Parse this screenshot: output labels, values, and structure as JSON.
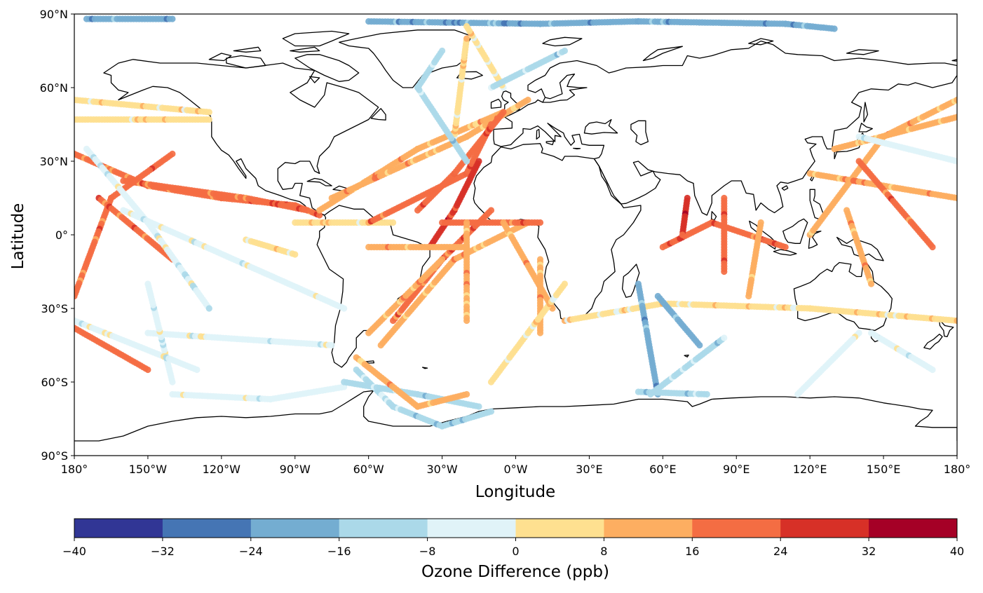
{
  "chart_data": {
    "type": "scatter",
    "subtype": "map-ship-track-scatter",
    "projection": "PlateCarree",
    "xlabel": "Longitude",
    "ylabel": "Latitude",
    "xlim": [
      -180,
      180
    ],
    "ylim": [
      -90,
      90
    ],
    "x_ticks": [
      -180,
      -150,
      -120,
      -90,
      -60,
      -30,
      0,
      30,
      60,
      90,
      120,
      150,
      180
    ],
    "x_tick_labels": [
      "180°",
      "150°W",
      "120°W",
      "90°W",
      "60°W",
      "30°W",
      "0°W",
      "30°E",
      "60°E",
      "90°E",
      "120°E",
      "150°E",
      "180°"
    ],
    "y_ticks": [
      90,
      60,
      30,
      0,
      -30,
      -60,
      -90
    ],
    "y_tick_labels": [
      "90°N",
      "60°N",
      "30°N",
      "0°",
      "30°S",
      "60°S",
      "90°S"
    ],
    "colorbar": {
      "label": "Ozone Difference (ppb)",
      "ticks": [
        -40,
        -32,
        -24,
        -16,
        -8,
        0,
        8,
        16,
        24,
        32,
        40
      ],
      "tick_labels": [
        "−40",
        "−32",
        "−24",
        "−16",
        "−8",
        "0",
        "8",
        "16",
        "24",
        "32",
        "40"
      ],
      "colors": [
        "#313695",
        "#4575b4",
        "#74add1",
        "#abd9e9",
        "#e0f3f8",
        "#fee090",
        "#fdae61",
        "#f46d43",
        "#d73027",
        "#a50026"
      ]
    },
    "tracks": [
      {
        "value": 4,
        "points": [
          [
            -180,
            47
          ],
          [
            -125,
            47
          ]
        ]
      },
      {
        "value": 4,
        "points": [
          [
            -180,
            55
          ],
          [
            -125,
            50
          ]
        ]
      },
      {
        "value": 20,
        "points": [
          [
            -180,
            33
          ],
          [
            -150,
            20
          ],
          [
            -120,
            15
          ],
          [
            -90,
            12
          ],
          [
            -80,
            8
          ]
        ]
      },
      {
        "value": 20,
        "points": [
          [
            -160,
            22
          ],
          [
            -110,
            15
          ],
          [
            -85,
            10
          ]
        ]
      },
      {
        "value": 20,
        "points": [
          [
            -140,
            33
          ],
          [
            -165,
            15
          ],
          [
            -180,
            -25
          ]
        ]
      },
      {
        "value": 20,
        "points": [
          [
            -170,
            15
          ],
          [
            -140,
            -10
          ]
        ]
      },
      {
        "value": 20,
        "points": [
          [
            -180,
            -38
          ],
          [
            -150,
            -55
          ]
        ]
      },
      {
        "value": -4,
        "points": [
          [
            -175,
            35
          ],
          [
            -150,
            5
          ],
          [
            -125,
            -30
          ]
        ]
      },
      {
        "value": -4,
        "points": [
          [
            -160,
            10
          ],
          [
            -70,
            -30
          ]
        ]
      },
      {
        "value": -4,
        "points": [
          [
            -150,
            -40
          ],
          [
            -75,
            -45
          ]
        ]
      },
      {
        "value": -4,
        "points": [
          [
            -140,
            -65
          ],
          [
            -100,
            -67
          ],
          [
            -70,
            -62
          ]
        ]
      },
      {
        "value": -4,
        "points": [
          [
            -140,
            -60
          ],
          [
            -150,
            -20
          ]
        ]
      },
      {
        "value": -4,
        "points": [
          [
            -180,
            -35
          ],
          [
            -130,
            -55
          ]
        ]
      },
      {
        "value": -20,
        "points": [
          [
            -175,
            88
          ],
          [
            -140,
            88
          ]
        ]
      },
      {
        "value": -20,
        "points": [
          [
            -60,
            87
          ],
          [
            10,
            86
          ],
          [
            50,
            87
          ],
          [
            110,
            86
          ],
          [
            130,
            84
          ]
        ]
      },
      {
        "value": 4,
        "points": [
          [
            -90,
            5
          ],
          [
            -50,
            5
          ]
        ]
      },
      {
        "value": 4,
        "points": [
          [
            -110,
            -2
          ],
          [
            -90,
            -8
          ]
        ]
      },
      {
        "value": 12,
        "points": [
          [
            -80,
            10
          ],
          [
            -40,
            35
          ],
          [
            -5,
            50
          ]
        ]
      },
      {
        "value": 12,
        "points": [
          [
            -75,
            15
          ],
          [
            -20,
            40
          ],
          [
            5,
            55
          ]
        ]
      },
      {
        "value": 20,
        "points": [
          [
            -60,
            5
          ],
          [
            -20,
            25
          ],
          [
            -10,
            45
          ]
        ]
      },
      {
        "value": 20,
        "points": [
          [
            -40,
            10
          ],
          [
            -25,
            25
          ],
          [
            -5,
            50
          ]
        ]
      },
      {
        "value": 28,
        "points": [
          [
            -35,
            -5
          ],
          [
            -25,
            10
          ],
          [
            -15,
            30
          ]
        ]
      },
      {
        "value": 20,
        "points": [
          [
            -50,
            -35
          ],
          [
            -30,
            -10
          ],
          [
            -10,
            10
          ]
        ]
      },
      {
        "value": 12,
        "points": [
          [
            -55,
            -45
          ],
          [
            -25,
            -10
          ],
          [
            5,
            5
          ]
        ]
      },
      {
        "value": 12,
        "points": [
          [
            -60,
            -40
          ],
          [
            -40,
            -20
          ],
          [
            -30,
            -10
          ]
        ]
      },
      {
        "value": 20,
        "points": [
          [
            -30,
            5
          ],
          [
            10,
            5
          ]
        ]
      },
      {
        "value": 12,
        "points": [
          [
            -60,
            -5
          ],
          [
            -20,
            -5
          ]
        ]
      },
      {
        "value": 12,
        "points": [
          [
            -20,
            5
          ],
          [
            -20,
            -35
          ]
        ]
      },
      {
        "value": 12,
        "points": [
          [
            -5,
            5
          ],
          [
            15,
            -30
          ]
        ]
      },
      {
        "value": 12,
        "points": [
          [
            10,
            -10
          ],
          [
            10,
            -40
          ]
        ]
      },
      {
        "value": 4,
        "points": [
          [
            -10,
            -60
          ],
          [
            20,
            -20
          ]
        ]
      },
      {
        "value": 4,
        "points": [
          [
            -25,
            40
          ],
          [
            -20,
            80
          ]
        ]
      },
      {
        "value": 4,
        "points": [
          [
            -5,
            60
          ],
          [
            -20,
            85
          ]
        ]
      },
      {
        "value": -12,
        "points": [
          [
            -20,
            30
          ],
          [
            -40,
            60
          ],
          [
            -30,
            75
          ]
        ]
      },
      {
        "value": -12,
        "points": [
          [
            -10,
            60
          ],
          [
            20,
            75
          ]
        ]
      },
      {
        "value": 4,
        "points": [
          [
            20,
            -35
          ],
          [
            60,
            -28
          ],
          [
            120,
            -30
          ],
          [
            180,
            -35
          ]
        ]
      },
      {
        "value": -20,
        "points": [
          [
            50,
            -20
          ],
          [
            58,
            -65
          ]
        ]
      },
      {
        "value": -20,
        "points": [
          [
            58,
            -25
          ],
          [
            75,
            -45
          ]
        ]
      },
      {
        "value": -12,
        "points": [
          [
            55,
            -65
          ],
          [
            85,
            -42
          ]
        ]
      },
      {
        "value": -12,
        "points": [
          [
            50,
            -64
          ],
          [
            78,
            -65
          ]
        ]
      },
      {
        "value": 20,
        "points": [
          [
            60,
            -5
          ],
          [
            80,
            5
          ],
          [
            110,
            -5
          ]
        ]
      },
      {
        "value": 28,
        "points": [
          [
            70,
            15
          ],
          [
            68,
            0
          ]
        ]
      },
      {
        "value": 20,
        "points": [
          [
            85,
            15
          ],
          [
            85,
            -15
          ]
        ]
      },
      {
        "value": 12,
        "points": [
          [
            100,
            5
          ],
          [
            95,
            -25
          ]
        ]
      },
      {
        "value": 12,
        "points": [
          [
            120,
            0
          ],
          [
            150,
            40
          ],
          [
            180,
            55
          ]
        ]
      },
      {
        "value": 12,
        "points": [
          [
            120,
            25
          ],
          [
            180,
            15
          ]
        ]
      },
      {
        "value": 12,
        "points": [
          [
            130,
            35
          ],
          [
            180,
            48
          ]
        ]
      },
      {
        "value": 20,
        "points": [
          [
            140,
            30
          ],
          [
            170,
            -5
          ]
        ]
      },
      {
        "value": 12,
        "points": [
          [
            135,
            10
          ],
          [
            145,
            -20
          ]
        ]
      },
      {
        "value": -4,
        "points": [
          [
            140,
            40
          ],
          [
            180,
            30
          ]
        ]
      },
      {
        "value": -4,
        "points": [
          [
            145,
            -40
          ],
          [
            170,
            -55
          ]
        ]
      },
      {
        "value": -4,
        "points": [
          [
            140,
            -40
          ],
          [
            115,
            -65
          ]
        ]
      },
      {
        "value": -12,
        "points": [
          [
            -65,
            -55
          ],
          [
            -50,
            -70
          ],
          [
            -30,
            -78
          ],
          [
            -10,
            -72
          ]
        ]
      },
      {
        "value": -12,
        "points": [
          [
            -70,
            -60
          ],
          [
            -40,
            -65
          ],
          [
            -15,
            -70
          ]
        ]
      },
      {
        "value": 12,
        "points": [
          [
            -65,
            -50
          ],
          [
            -40,
            -70
          ],
          [
            -20,
            -65
          ]
        ]
      }
    ]
  }
}
